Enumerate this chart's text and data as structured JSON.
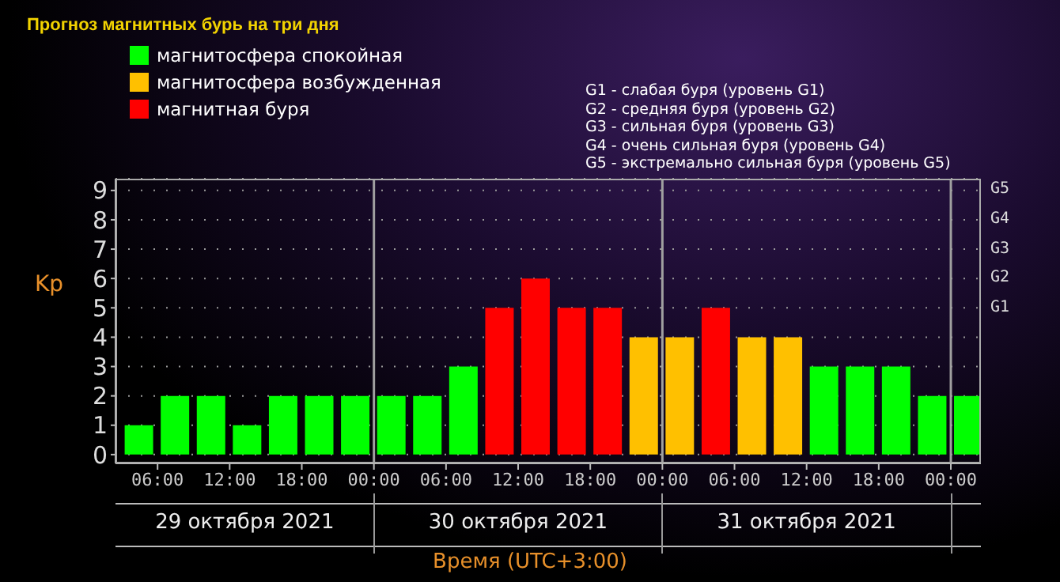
{
  "chart_data": {
    "type": "bar",
    "title": "Прогноз магнитных бурь на три дня",
    "xlabel": "Время (UTC+3:00)",
    "ylabel": "Kp",
    "x": [
      "2021-10-29T04:30",
      "2021-10-29T07:30",
      "2021-10-29T10:30",
      "2021-10-29T13:30",
      "2021-10-29T16:30",
      "2021-10-29T19:30",
      "2021-10-29T22:30",
      "2021-10-30T01:30",
      "2021-10-30T04:30",
      "2021-10-30T07:30",
      "2021-10-30T10:30",
      "2021-10-30T13:30",
      "2021-10-30T16:30",
      "2021-10-30T19:30",
      "2021-10-30T22:30",
      "2021-10-31T01:30",
      "2021-10-31T04:30",
      "2021-10-31T07:30",
      "2021-10-31T10:30",
      "2021-10-31T13:30",
      "2021-10-31T16:30",
      "2021-10-31T19:30",
      "2021-10-31T22:30",
      "2021-11-01T01:30"
    ],
    "series": [
      {
        "name": "магнитосфера спокойная",
        "color": "#00ff00",
        "values": [
          1,
          2,
          2,
          1,
          2,
          2,
          2,
          2,
          2,
          3,
          null,
          null,
          null,
          null,
          null,
          null,
          null,
          null,
          null,
          3,
          3,
          3,
          2,
          2
        ]
      },
      {
        "name": "магнитосфера возбужденная",
        "color": "#ffc000",
        "values": [
          null,
          null,
          null,
          null,
          null,
          null,
          null,
          null,
          null,
          null,
          null,
          null,
          null,
          null,
          4,
          4,
          null,
          4,
          4,
          null,
          null,
          null,
          null,
          null
        ]
      },
      {
        "name": "магнитная буря",
        "color": "#ff0000",
        "values": [
          null,
          null,
          null,
          null,
          null,
          null,
          null,
          null,
          null,
          null,
          5,
          6,
          5,
          5,
          null,
          null,
          5,
          null,
          null,
          null,
          null,
          null,
          null,
          null
        ]
      }
    ],
    "stacked": true,
    "xlim": [
      "2021-10-29T02:30",
      "2021-11-01T02:30"
    ],
    "xticks": [
      {
        "value": "2021-10-29T06:00",
        "label": "06:00"
      },
      {
        "value": "2021-10-29T12:00",
        "label": "12:00"
      },
      {
        "value": "2021-10-29T18:00",
        "label": "18:00"
      },
      {
        "value": "2021-10-30T00:00",
        "label": "00:00"
      },
      {
        "value": "2021-10-30T06:00",
        "label": "06:00"
      },
      {
        "value": "2021-10-30T12:00",
        "label": "12:00"
      },
      {
        "value": "2021-10-30T18:00",
        "label": "18:00"
      },
      {
        "value": "2021-10-31T00:00",
        "label": "00:00"
      },
      {
        "value": "2021-10-31T06:00",
        "label": "06:00"
      },
      {
        "value": "2021-10-31T12:00",
        "label": "12:00"
      },
      {
        "value": "2021-10-31T18:00",
        "label": "18:00"
      },
      {
        "value": "2021-11-01T00:00",
        "label": "00:00"
      }
    ],
    "ylim": [
      -0.3,
      9.4
    ],
    "yticks": [
      0,
      1,
      2,
      3,
      4,
      5,
      6,
      7,
      8,
      9
    ],
    "grid": "y",
    "legend": "top left",
    "ref_lines": [
      {
        "axis": "x",
        "value": "2021-10-30T00:00",
        "color": "#a0a0a0"
      },
      {
        "axis": "x",
        "value": "2021-10-31T00:00",
        "color": "#a0a0a0"
      },
      {
        "axis": "x",
        "value": "2021-11-01T00:00",
        "color": "#a0a0a0"
      }
    ],
    "annotations": [
      "G5",
      "G4",
      "G3",
      "G2",
      "G1",
      "G1 - слабая буря (уровень G1)",
      "G2 - средняя буря (уровень G2)",
      "G3 - сильная буря (уровень G3)",
      "G4 - очень сильная буря (уровень G4)",
      "G5 - экстремально сильная буря (уровень G5)",
      "29 октября 2021",
      "30 октября 2021",
      "31 октября 2021"
    ]
  }
}
